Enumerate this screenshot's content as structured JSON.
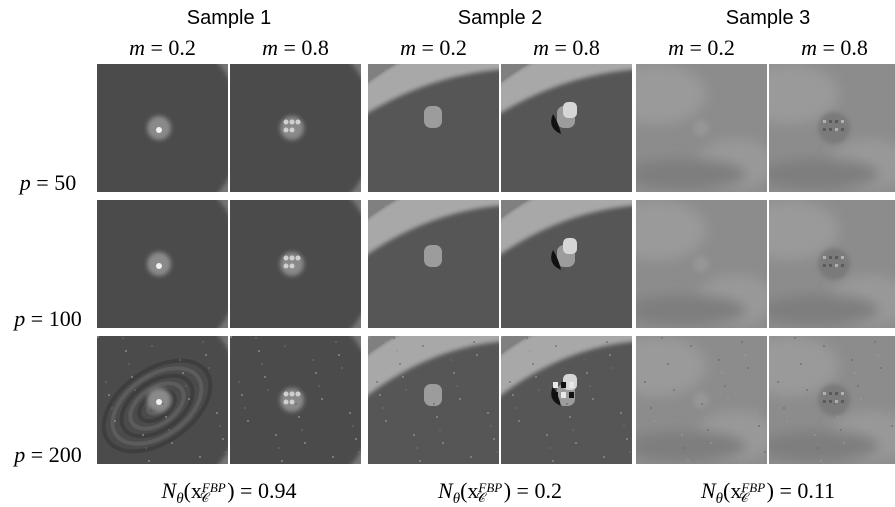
{
  "samples": [
    {
      "title": "Sample 1",
      "columns": [
        "m = 0.2",
        "m = 0.8"
      ],
      "score": "0.94"
    },
    {
      "title": "Sample 2",
      "columns": [
        "m = 0.2",
        "m = 0.8"
      ],
      "score": "0.2"
    },
    {
      "title": "Sample 3",
      "columns": [
        "m = 0.2",
        "m = 0.8"
      ],
      "score": "0.11"
    }
  ],
  "rows": [
    "p = 50",
    "p = 100",
    "p = 200"
  ],
  "formula": {
    "n": "N",
    "theta": "θ",
    "open": "(x",
    "sup": "FBP",
    "sub": "𝒞",
    "close": ") = "
  }
}
